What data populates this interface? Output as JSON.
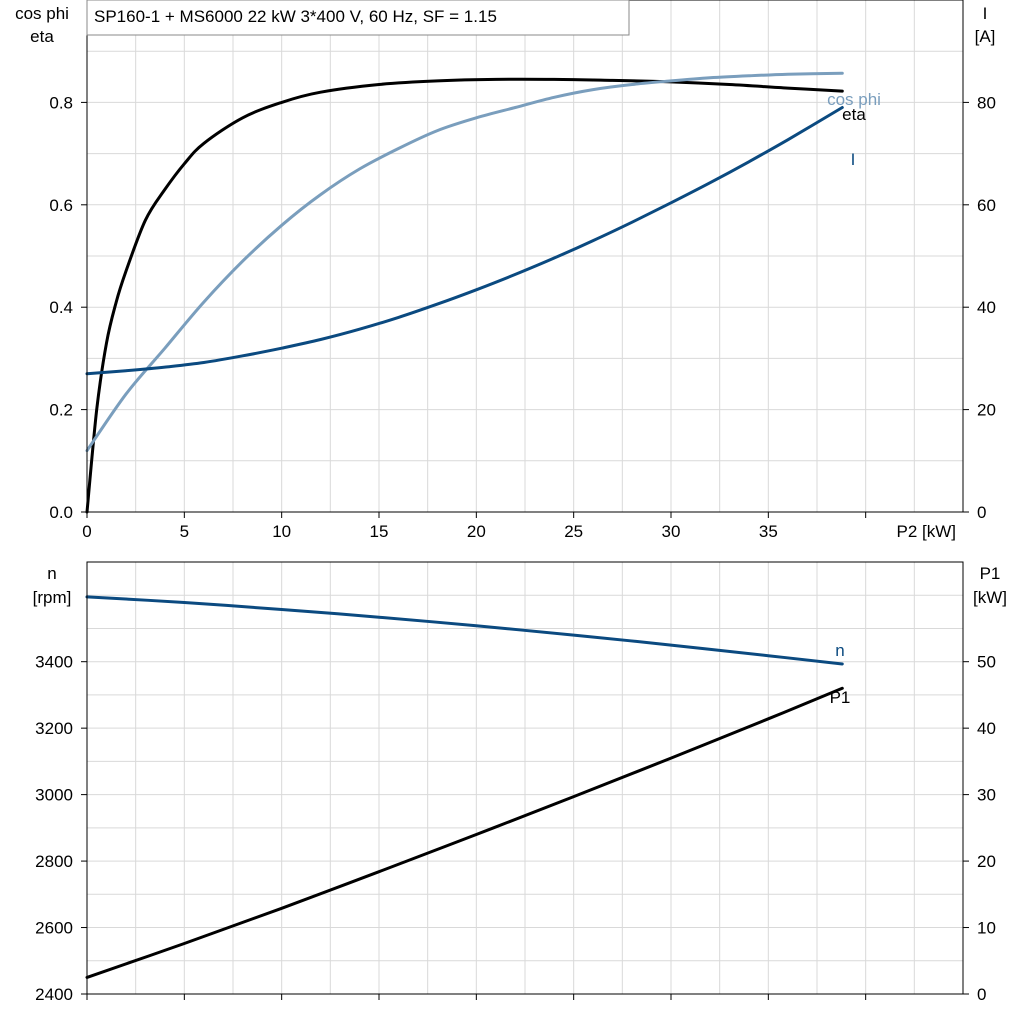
{
  "title": "SP160-1 + MS6000   22 kW   3*400 V, 60 Hz, SF = 1.15",
  "colors": {
    "eta": "#000000",
    "cos_phi": "#7a9ebd",
    "I": "#0b4a80",
    "n": "#0b4a80",
    "P1": "#000000",
    "grid": "#d9d9d9"
  },
  "chart_data": [
    {
      "type": "line",
      "x_label": "P2 [kW]",
      "y_left_label": [
        "cos phi",
        "eta"
      ],
      "y_right_label": [
        "I",
        "[A]"
      ],
      "x_ticks": [
        0,
        5,
        10,
        15,
        20,
        25,
        30,
        35
      ],
      "y_left_ticks": [
        "0.0",
        "0.2",
        "0.4",
        "0.6",
        "0.8"
      ],
      "y_right_ticks": [
        "0",
        "20",
        "40",
        "60",
        "80"
      ],
      "xlim": [
        0,
        45
      ],
      "y_left_lim": [
        0,
        1.0
      ],
      "y_right_lim": [
        0,
        100
      ],
      "grid": true,
      "series": [
        {
          "name": "eta",
          "axis": "left",
          "x": [
            0,
            0.5,
            1,
            1.5,
            2,
            3,
            4,
            5,
            6,
            8,
            10,
            12,
            15,
            18,
            21,
            24,
            27,
            30,
            33,
            36,
            38.8
          ],
          "y": [
            0,
            0.2,
            0.33,
            0.41,
            0.47,
            0.57,
            0.63,
            0.68,
            0.72,
            0.77,
            0.8,
            0.82,
            0.835,
            0.842,
            0.845,
            0.845,
            0.843,
            0.84,
            0.835,
            0.828,
            0.822
          ]
        },
        {
          "name": "cos phi",
          "axis": "left",
          "x": [
            0,
            2,
            4,
            6,
            8,
            10,
            12,
            14,
            16,
            18,
            20,
            22,
            24,
            26,
            28,
            30,
            32,
            34,
            36,
            38.8
          ],
          "y": [
            0.12,
            0.23,
            0.32,
            0.41,
            0.49,
            0.56,
            0.62,
            0.67,
            0.71,
            0.745,
            0.77,
            0.79,
            0.81,
            0.825,
            0.835,
            0.842,
            0.848,
            0.852,
            0.855,
            0.857
          ]
        },
        {
          "name": "I",
          "axis": "right",
          "x": [
            0,
            2,
            4,
            6,
            8,
            10,
            12,
            14,
            16,
            18,
            20,
            22,
            24,
            26,
            28,
            30,
            32,
            34,
            36,
            38.8
          ],
          "y": [
            27,
            27.6,
            28.3,
            29.2,
            30.5,
            32,
            33.7,
            35.7,
            38,
            40.6,
            43.4,
            46.4,
            49.6,
            53,
            56.6,
            60.4,
            64.3,
            68.4,
            72.7,
            79
          ]
        }
      ]
    },
    {
      "type": "line",
      "x_label": "",
      "y_left_label": [
        "n",
        "[rpm]"
      ],
      "y_right_label": [
        "P1",
        "[kW]"
      ],
      "x_ticks": [
        0,
        5,
        10,
        15,
        20,
        25,
        30,
        35
      ],
      "y_left_ticks": [
        "2400",
        "2600",
        "2800",
        "3000",
        "3200",
        "3400"
      ],
      "y_right_ticks": [
        "0",
        "10",
        "20",
        "30",
        "40",
        "50"
      ],
      "xlim": [
        0,
        45
      ],
      "y_left_lim": [
        2400,
        3700
      ],
      "y_right_lim": [
        0,
        65
      ],
      "grid": true,
      "series": [
        {
          "name": "n",
          "axis": "left",
          "x": [
            0,
            5,
            10,
            15,
            20,
            25,
            30,
            35,
            38.8
          ],
          "y": [
            3595,
            3578,
            3557,
            3534,
            3508,
            3480,
            3450,
            3418,
            3393
          ]
        },
        {
          "name": "P1",
          "axis": "right",
          "x": [
            0,
            5,
            10,
            15,
            20,
            25,
            30,
            35,
            38.8
          ],
          "y": [
            2.5,
            7.6,
            12.9,
            18.4,
            24.0,
            29.7,
            35.5,
            41.4,
            46.0
          ]
        }
      ]
    }
  ]
}
